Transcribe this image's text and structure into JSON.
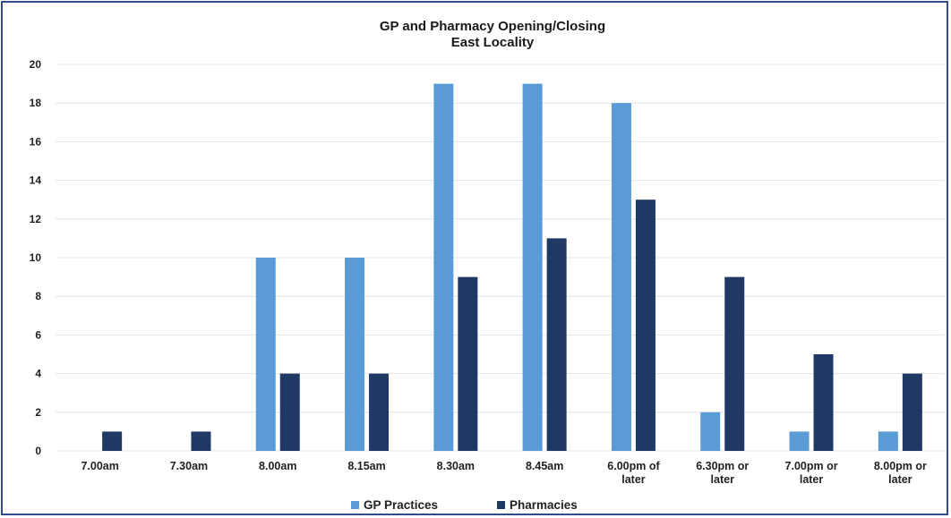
{
  "chart_data": {
    "type": "bar",
    "title": "GP and Pharmacy Opening/Closing",
    "subtitle": "East Locality",
    "xlabel": "",
    "ylabel": "",
    "ylim": [
      0,
      20
    ],
    "yticks": [
      0,
      2,
      4,
      6,
      8,
      10,
      12,
      14,
      16,
      18,
      20
    ],
    "grid": true,
    "legend_position": "bottom",
    "categories": [
      [
        "7.00am"
      ],
      [
        "7.30am"
      ],
      [
        "8.00am"
      ],
      [
        "8.15am"
      ],
      [
        "8.30am"
      ],
      [
        "8.45am"
      ],
      [
        "6.00pm of",
        "later"
      ],
      [
        "6.30pm or",
        "later"
      ],
      [
        "7.00pm or",
        "later"
      ],
      [
        "8.00pm or",
        "later"
      ]
    ],
    "series": [
      {
        "name": "GP Practices",
        "color": "#5b9bd5",
        "values": [
          0,
          0,
          10,
          10,
          19,
          19,
          18,
          2,
          1,
          1
        ]
      },
      {
        "name": "Pharmacies",
        "color": "#1f3864",
        "values": [
          1,
          1,
          4,
          4,
          9,
          11,
          13,
          9,
          5,
          4
        ]
      }
    ]
  }
}
